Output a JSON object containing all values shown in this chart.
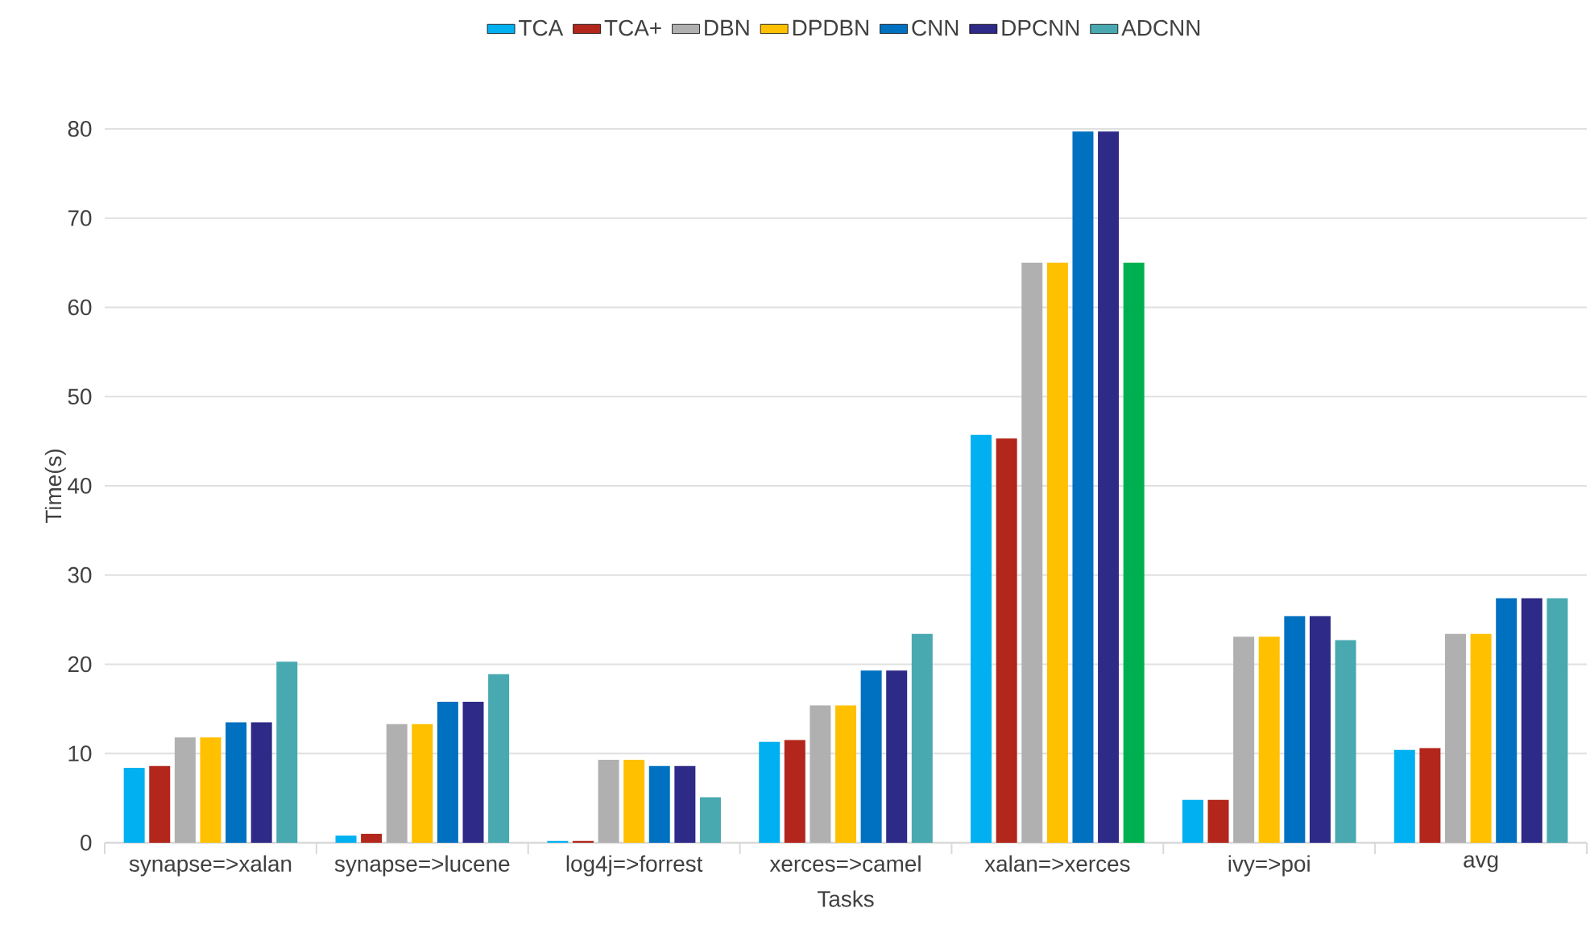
{
  "chart_data": {
    "type": "bar",
    "xlabel": "Tasks",
    "ylabel": "Time(s)",
    "categories": [
      "synapse=>xalan",
      "synapse=>lucene",
      "log4j=>forrest",
      "xerces=>camel",
      "xalan=>xerces",
      "ivy=>poi",
      "avg"
    ],
    "series": [
      {
        "name": "TCA",
        "color": "#00b0f0",
        "values": [
          8.4,
          0.8,
          0.2,
          11.3,
          45.7,
          4.8,
          10.4
        ]
      },
      {
        "name": "TCA+",
        "color": "#b2261b",
        "values": [
          8.6,
          1.0,
          0.2,
          11.5,
          45.3,
          4.8,
          10.6
        ]
      },
      {
        "name": "DBN",
        "color": "#b0b0b0",
        "values": [
          11.8,
          13.3,
          9.3,
          15.4,
          65,
          23.1,
          23.4
        ]
      },
      {
        "name": "DPDBN",
        "color": "#ffc000",
        "values": [
          11.8,
          13.3,
          9.3,
          15.4,
          65,
          23.1,
          23.4
        ]
      },
      {
        "name": "CNN",
        "color": "#0070c0",
        "values": [
          13.5,
          15.8,
          8.6,
          19.3,
          79.7,
          25.4,
          27.4
        ]
      },
      {
        "name": "DPCNN",
        "color": "#2e2a87",
        "values": [
          13.5,
          15.8,
          8.6,
          19.3,
          79.7,
          25.4,
          27.4
        ]
      },
      {
        "name": "ADCNN",
        "color": "#48a9b0",
        "colors": [
          "#48a9b0",
          "#48a9b0",
          "#48a9b0",
          "#48a9b0",
          "#00b050",
          "#48a9b0",
          "#48a9b0"
        ],
        "values": [
          20.3,
          18.9,
          5.1,
          23.4,
          65,
          22.7,
          27.4
        ]
      }
    ],
    "ylim": [
      0,
      80
    ],
    "yticks": [
      0,
      10,
      20,
      30,
      40,
      50,
      60,
      70,
      80
    ],
    "grid": "y",
    "legend": "top"
  }
}
